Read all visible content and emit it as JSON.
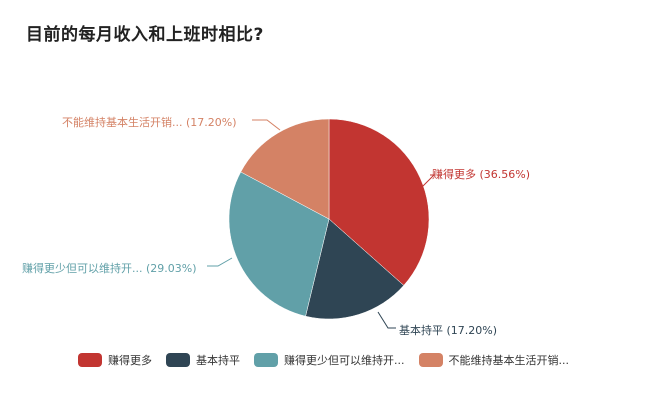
{
  "title": "目前的每月收入和上班时相比?",
  "chart_data": {
    "type": "pie",
    "title": "目前的每月收入和上班时相比?",
    "categories": [
      "赚得更多",
      "基本持平",
      "赚得更少但可以维持开...",
      "不能维持基本生活开销..."
    ],
    "values": [
      36.56,
      17.2,
      29.03,
      17.2
    ],
    "colors": [
      "#c23531",
      "#2f4554",
      "#61a0a8",
      "#d48265"
    ],
    "data_labels": [
      "赚得更多 (36.56%)",
      "基本持平 (17.20%)",
      "赚得更少但可以维持开... (29.03%)",
      "不能维持基本生活开销... (17.20%)"
    ],
    "legend_position": "bottom",
    "start_angle": "12 o'clock, clockwise"
  },
  "labels": [
    {
      "text": "赚得更多 (36.56%)",
      "color": "#c23531"
    },
    {
      "text": "基本持平 (17.20%)",
      "color": "#2f4554"
    },
    {
      "text": "赚得更少但可以维持开... (29.03%)",
      "color": "#61a0a8"
    },
    {
      "text": "不能维持基本生活开销... (17.20%)",
      "color": "#d48265"
    }
  ],
  "legend": [
    {
      "label": "赚得更多",
      "color": "#c23531"
    },
    {
      "label": "基本持平",
      "color": "#2f4554"
    },
    {
      "label": "赚得更少但可以维持开...",
      "color": "#61a0a8"
    },
    {
      "label": "不能维持基本生活开销...",
      "color": "#d48265"
    }
  ]
}
